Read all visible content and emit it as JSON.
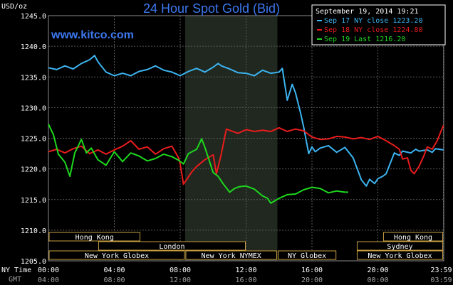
{
  "chart_data": {
    "type": "line",
    "title": "24 Hour Spot Gold (Bid)",
    "watermark": "www.kitco.com",
    "ylabel": "USD/oz",
    "timestamp": "September 19, 2014 19:21",
    "ylim": [
      1205,
      1245
    ],
    "yticks": [
      "1245.0",
      "1240.0",
      "1235.0",
      "1230.0",
      "1225.0",
      "1220.0",
      "1215.0",
      "1210.0",
      "1205.0"
    ],
    "x_unit": "hours (NY time)",
    "xlim": [
      0,
      24
    ],
    "ny_time_label": "NY Time",
    "gmt_label": "GMT",
    "ny_ticks": [
      "00:00",
      "04:00",
      "08:00",
      "12:00",
      "16:00",
      "20:00",
      "23:59"
    ],
    "gmt_ticks": [
      "04:00",
      "08:00",
      "12:00",
      "16:00",
      "20:00",
      "00:00",
      "03:59"
    ],
    "grid": true,
    "legend_position": "top-right",
    "series": [
      {
        "name": "Sep 17 NY close 1223.20",
        "color": "#3cb4f0",
        "x": [
          0,
          0.5,
          1,
          1.5,
          2,
          2.5,
          2.8,
          3,
          3.2,
          3.5,
          4,
          4.5,
          5,
          5.5,
          6,
          6.5,
          7,
          7.5,
          8,
          8.5,
          9,
          9.5,
          10,
          10.3,
          10.5,
          11,
          11.5,
          12,
          12.5,
          13,
          13.5,
          14,
          14.2,
          14.5,
          14.8,
          15,
          15.3,
          15.5,
          15.8,
          16,
          16.2,
          16.5,
          17,
          17.5,
          18,
          18.5,
          19,
          19.3,
          19.5,
          19.8,
          20,
          20.3,
          20.5,
          21,
          21.3,
          21.5,
          22,
          22.3,
          22.5,
          23,
          23.3,
          23.5,
          23.98
        ],
        "y": [
          1236.5,
          1236.2,
          1236.8,
          1236.3,
          1237.2,
          1237.8,
          1238.5,
          1237.5,
          1236.8,
          1235.8,
          1235.2,
          1235.6,
          1235.2,
          1235.9,
          1236.2,
          1236.8,
          1236.1,
          1235.8,
          1235.2,
          1235.9,
          1236.4,
          1235.8,
          1236.6,
          1237.2,
          1236.8,
          1236.3,
          1235.7,
          1235.6,
          1235.2,
          1236.1,
          1235.6,
          1235.8,
          1236.4,
          1231.2,
          1233.8,
          1232.4,
          1229.2,
          1226.8,
          1222.5,
          1223.6,
          1222.8,
          1223.4,
          1223.8,
          1222.7,
          1223.5,
          1221.8,
          1218.2,
          1217.2,
          1218.3,
          1217.6,
          1218.4,
          1218.8,
          1219.2,
          1222.6,
          1222.2,
          1222.9,
          1222.6,
          1223.2,
          1222.9,
          1223.1,
          1222.7,
          1223.3,
          1223.1
        ]
      },
      {
        "name": "Sep 18 NY close 1224.80",
        "color": "#e81c1c",
        "x": [
          0,
          0.5,
          1,
          1.5,
          2,
          2.5,
          3,
          3.5,
          4,
          4.5,
          5,
          5.5,
          6,
          6.5,
          7,
          7.5,
          7.9,
          8,
          8.2,
          8.4,
          8.7,
          9,
          9.5,
          10,
          10.2,
          10.5,
          10.8,
          11,
          11.5,
          12,
          12.5,
          13,
          13.5,
          14,
          14.5,
          15,
          15.5,
          16,
          16.5,
          17,
          17.5,
          18,
          18.5,
          19,
          19.5,
          20,
          20.5,
          21,
          21.3,
          21.5,
          21.8,
          22,
          22.2,
          22.5,
          22.8,
          23,
          23.3,
          23.6,
          23.98
        ],
        "y": [
          1222.8,
          1223.2,
          1222.6,
          1223.3,
          1223.7,
          1222.5,
          1223.1,
          1222.4,
          1223.1,
          1223.7,
          1224.6,
          1223.2,
          1223.6,
          1222.4,
          1223.3,
          1223.7,
          1221.8,
          1220.8,
          1217.5,
          1218.3,
          1219.5,
          1220.4,
          1221.5,
          1222.3,
          1219.2,
          1222.5,
          1226.5,
          1226.3,
          1225.8,
          1226.4,
          1226.1,
          1226.3,
          1226.1,
          1226.7,
          1226.1,
          1226.5,
          1226.2,
          1225.2,
          1224.8,
          1224.9,
          1225.3,
          1225.2,
          1224.9,
          1225.1,
          1224.8,
          1225.3,
          1224.6,
          1223.8,
          1223.2,
          1221.6,
          1221.8,
          1219.8,
          1219.2,
          1220.4,
          1222.2,
          1223.6,
          1223.2,
          1224.6,
          1227.1
        ]
      },
      {
        "name": "Sep 19 Last 1216.20",
        "color": "#1ed81e",
        "x": [
          0,
          0.3,
          0.6,
          1,
          1.3,
          1.6,
          2,
          2.3,
          2.6,
          3,
          3.5,
          4,
          4.5,
          5,
          5.5,
          6,
          6.5,
          7,
          7.5,
          7.9,
          8.2,
          8.5,
          9,
          9.3,
          9.5,
          10,
          10.3,
          10.6,
          11,
          11.3,
          11.6,
          12,
          12.5,
          13,
          13.3,
          13.5,
          14,
          14.5,
          15,
          15.5,
          16,
          16.5,
          17,
          17.5,
          18,
          18.2
        ],
        "y": [
          1227.3,
          1225.6,
          1222.4,
          1221.1,
          1218.8,
          1222.6,
          1224.8,
          1222.6,
          1223.4,
          1221.5,
          1220.6,
          1222.8,
          1221.2,
          1222.6,
          1222.1,
          1221.3,
          1221.7,
          1222.4,
          1222.0,
          1221.4,
          1220.8,
          1222.5,
          1223.2,
          1224.9,
          1223.5,
          1219.4,
          1218.8,
          1217.6,
          1216.2,
          1216.8,
          1217.1,
          1217.2,
          1216.7,
          1215.6,
          1215.2,
          1214.4,
          1215.2,
          1215.8,
          1215.9,
          1216.6,
          1217.0,
          1216.8,
          1216.1,
          1216.4,
          1216.2,
          1216.2
        ]
      }
    ],
    "highlight_range_hours": [
      8.3,
      13.9
    ],
    "sessions": [
      {
        "name": "Hong Kong",
        "start": 0,
        "end": 5.6,
        "row": 1
      },
      {
        "name": "Hong Kong",
        "start": 20.3,
        "end": 23.98,
        "row": 1
      },
      {
        "name": "London",
        "start": 3,
        "end": 12,
        "row": 2
      },
      {
        "name": "Sydney",
        "start": 18.7,
        "end": 23.98,
        "row": 2
      },
      {
        "name": "New York Globex",
        "start": 0,
        "end": 8.3,
        "row": 3
      },
      {
        "name": "New York NYMEX",
        "start": 8.3,
        "end": 13.9,
        "row": 3
      },
      {
        "name": "NY Globex",
        "start": 13.9,
        "end": 17.5,
        "row": 3
      },
      {
        "name": "New York Globex",
        "start": 18.7,
        "end": 23.98,
        "row": 3
      }
    ]
  }
}
